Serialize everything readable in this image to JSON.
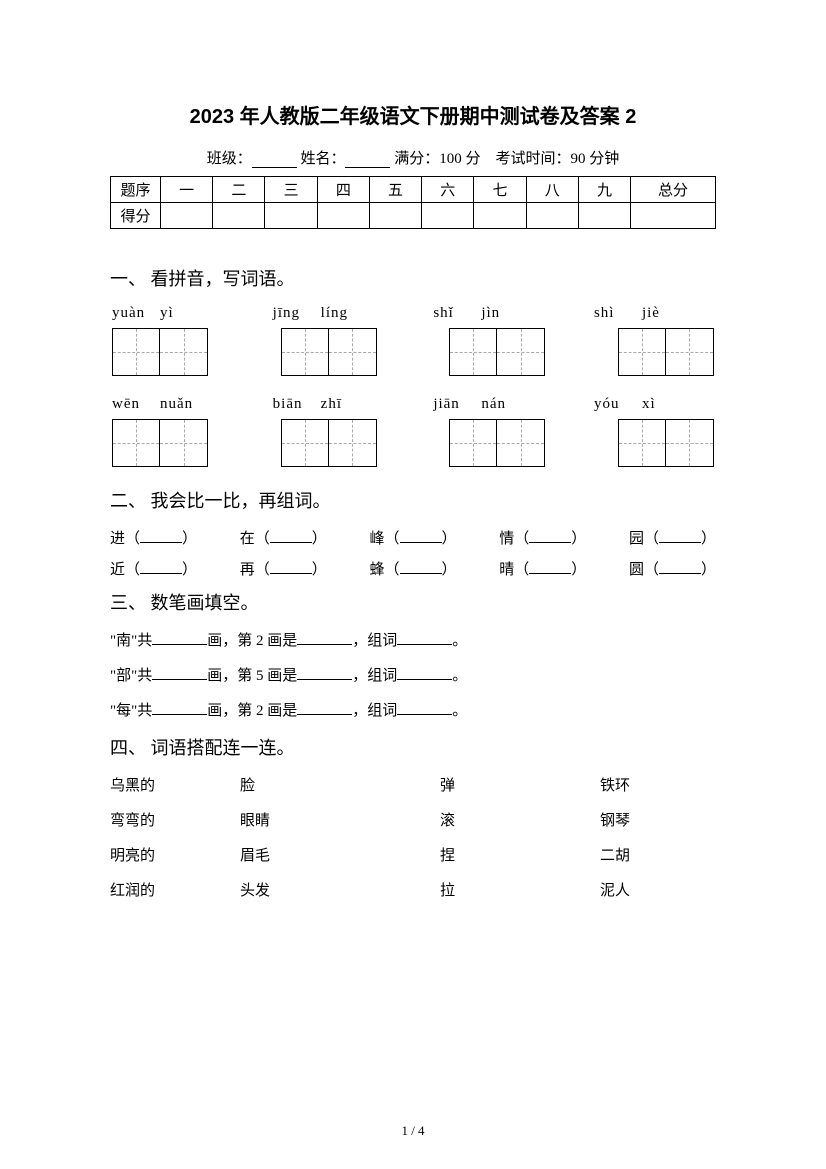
{
  "title": "2023 年人教版二年级语文下册期中测试卷及答案 2",
  "info": {
    "class_label": "班级：",
    "name_label": "姓名：",
    "score_label": "满分：",
    "score_value": "100 分",
    "time_label": "考试时间：",
    "time_value": "90 分钟"
  },
  "score_table": {
    "row1_label": "题序",
    "row2_label": "得分",
    "cols": [
      "一",
      "二",
      "三",
      "四",
      "五",
      "六",
      "七",
      "八",
      "九",
      "总分"
    ]
  },
  "section1": {
    "title": "一、 看拼音，写词语。",
    "row1": [
      {
        "p1": "yuàn",
        "p2": "yì"
      },
      {
        "p1": "jīng",
        "p2": "líng"
      },
      {
        "p1": "shǐ",
        "p2": "jìn"
      },
      {
        "p1": "shì",
        "p2": "jiè"
      }
    ],
    "row2": [
      {
        "p1": "wēn",
        "p2": "nuǎn"
      },
      {
        "p1": "biān",
        "p2": "zhī"
      },
      {
        "p1": "jiān",
        "p2": "nán"
      },
      {
        "p1": "yóu",
        "p2": "xì"
      }
    ]
  },
  "section2": {
    "title": "二、 我会比一比，再组词。",
    "row1": [
      "进",
      "在",
      "峰",
      "情",
      "园"
    ],
    "row2": [
      "近",
      "再",
      "蜂",
      "晴",
      "圆"
    ]
  },
  "section3": {
    "title": "三、 数笔画填空。",
    "lines": [
      {
        "char": "南",
        "stroke_label": "画，第 2 画是",
        "group_label": "，组词"
      },
      {
        "char": "部",
        "stroke_label": "画，第 5 画是",
        "group_label": "，组词"
      },
      {
        "char": "每",
        "stroke_label": "画，第 2 画是",
        "group_label": "，组词"
      }
    ]
  },
  "section4": {
    "title": "四、 词语搭配连一连。",
    "rows": [
      [
        "乌黑的",
        "脸",
        "弹",
        "铁环"
      ],
      [
        "弯弯的",
        "眼睛",
        "滚",
        "钢琴"
      ],
      [
        "明亮的",
        "眉毛",
        "捏",
        "二胡"
      ],
      [
        "红润的",
        "头发",
        "拉",
        "泥人"
      ]
    ]
  },
  "page_num": "1 / 4"
}
